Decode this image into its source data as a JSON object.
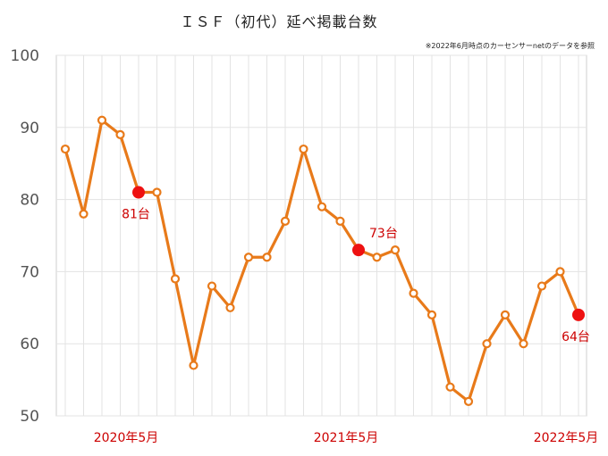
{
  "chart_data": {
    "type": "line",
    "title": "ＩＳＦ（初代）延べ掲載台数",
    "note": "※2022年6月時点のカーセンサーnetのデータを参照",
    "xlabel": "",
    "ylabel": "",
    "ylim": [
      50,
      100
    ],
    "yticks": [
      "100",
      "90",
      "80",
      "70",
      "60",
      "50"
    ],
    "grid": true,
    "x_tick_labels": [
      {
        "index": 4,
        "label": "2020年5月"
      },
      {
        "index": 16,
        "label": "2021年5月"
      },
      {
        "index": 28,
        "label": "2022年5月"
      }
    ],
    "series": [
      {
        "values": [
          87,
          78,
          91,
          89,
          81,
          81,
          69,
          57,
          68,
          65,
          72,
          72,
          77,
          87,
          79,
          77,
          73,
          72,
          73,
          67,
          64,
          54,
          52,
          60,
          64,
          60,
          68,
          70,
          64
        ]
      }
    ],
    "highlights": [
      {
        "index": 4,
        "label": "81台",
        "position": "below"
      },
      {
        "index": 16,
        "label": "73台",
        "position": "above-right"
      },
      {
        "index": 28,
        "label": "64台",
        "position": "below"
      }
    ],
    "colors": {
      "line": "#e87a1a",
      "highlight": "#ee1111",
      "label": "#cc0000",
      "grid": "#e3e3e3"
    }
  }
}
